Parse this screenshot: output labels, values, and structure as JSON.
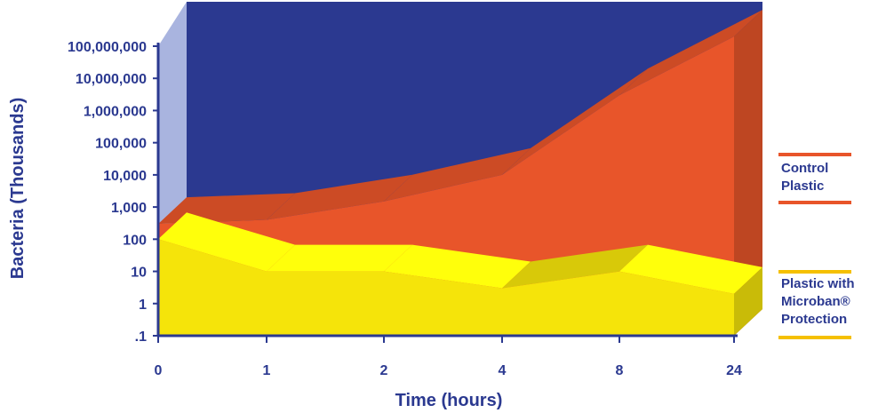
{
  "chart_data": {
    "type": "area",
    "xlabel": "Time (hours)",
    "ylabel": "Bacteria (Thousands)",
    "yscale": "log",
    "ylim": [
      0.1,
      100000000
    ],
    "categories": [
      "0",
      "1",
      "2",
      "4",
      "8",
      "24"
    ],
    "y_ticks": [
      ".1",
      "1",
      "10",
      "100",
      "1,000",
      "10,000",
      "100,000",
      "1,000,000",
      "10,000,000",
      "100,000,000"
    ],
    "series": [
      {
        "name": "Control Plastic",
        "values": [
          300,
          400,
          1500,
          10000,
          3000000,
          200000000
        ],
        "color": "#e8552a"
      },
      {
        "name": "Plastic with Microban® Protection",
        "values": [
          100,
          10,
          10,
          3,
          10,
          2
        ],
        "color": "#f5e40a"
      }
    ],
    "legend": [
      {
        "label_lines": [
          "Control",
          "Plastic"
        ],
        "color": "#e8552a"
      },
      {
        "label_lines": [
          "Plastic with",
          "Microban®",
          "Protection"
        ],
        "color": "#f5c000"
      }
    ],
    "legend_position": "right",
    "style": "3d",
    "colors": {
      "background": "#2b3990",
      "axis": "#2b3990",
      "side_wall": "#a9b4df"
    }
  }
}
